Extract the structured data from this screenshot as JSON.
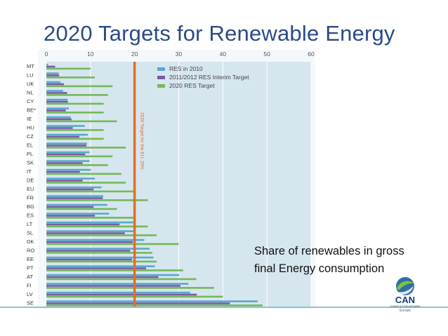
{
  "slide": {
    "title": "2020 Targets for Renewable Energy",
    "caption_lines": [
      "Share of renewables in gross",
      "final Energy consumption"
    ],
    "logo": {
      "name": "CAN",
      "subtitle": "CLIMATE ACTION NETWORK",
      "region": "Europe"
    }
  },
  "colors": {
    "title": "#2b4b86",
    "plot_bg": "#d6e6ef",
    "res_2010": "#5aa8cc",
    "interim": "#7a5ba8",
    "target_2020": "#74b957",
    "eu_target_line": "#e26d2a",
    "bottom_rule": "#8fc3cf"
  },
  "chart_data": {
    "type": "bar",
    "orientation": "horizontal",
    "title": "",
    "xlim": [
      0,
      60
    ],
    "xticks": [
      0,
      10,
      20,
      30,
      40,
      50,
      60
    ],
    "x_tick_labels": [
      "0",
      "10",
      "20",
      "30",
      "40",
      "50",
      "60"
    ],
    "categories": [
      "MT",
      "LU",
      "UK",
      "NL",
      "CY",
      "BE*",
      "IE",
      "HU",
      "CZ",
      "EL",
      "PL",
      "SK",
      "IT",
      "DE",
      "EU",
      "FR",
      "BG",
      "ES",
      "LT",
      "SL",
      "DK",
      "RO",
      "EE",
      "PT",
      "AT",
      "FI",
      "LV",
      "SE"
    ],
    "series": [
      {
        "name": "RES in 2010",
        "color_key": "res_2010",
        "values": [
          0.4,
          2.8,
          3.2,
          3.8,
          4.8,
          5.1,
          5.5,
          8.7,
          9.4,
          9.2,
          9.8,
          9.8,
          10.1,
          11.0,
          12.5,
          12.9,
          13.8,
          14.2,
          19.7,
          19.9,
          22.2,
          23.4,
          24.3,
          24.6,
          30.1,
          32.2,
          32.6,
          47.9
        ]
      },
      {
        "name": "2011/2012 RES Interim Target",
        "color_key": "interim",
        "values": [
          2.0,
          2.9,
          4.0,
          4.7,
          4.9,
          4.4,
          5.7,
          6.0,
          7.5,
          9.1,
          8.8,
          8.2,
          7.6,
          8.2,
          10.7,
          12.8,
          10.7,
          11.0,
          16.6,
          17.8,
          19.6,
          19.0,
          19.4,
          22.6,
          25.4,
          30.4,
          34.1,
          41.6
        ]
      },
      {
        "name": "2020 RES Target",
        "color_key": "target_2020",
        "values": [
          10,
          11,
          15,
          14,
          13,
          13,
          16,
          13,
          13,
          18,
          15,
          14,
          17,
          18,
          20,
          23,
          16,
          20,
          23,
          25,
          30,
          24,
          25,
          31,
          34,
          38,
          40,
          49
        ]
      }
    ],
    "reference_line": {
      "value": 20,
      "label": "2020 Target for the EU: 20%"
    },
    "legend_position": "top-right",
    "grid": true
  }
}
